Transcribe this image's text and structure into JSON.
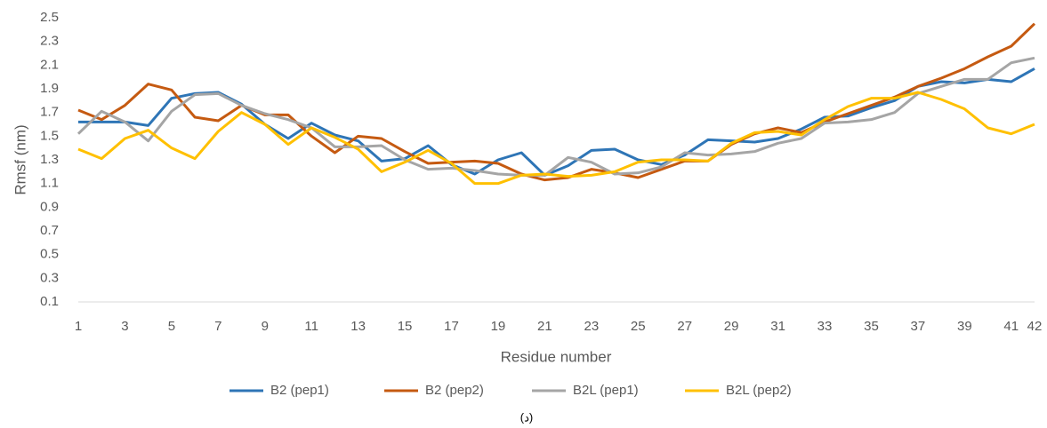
{
  "chart_data": {
    "type": "line",
    "y_label": "Rmsf (nm)",
    "x_label": "Residue number",
    "caption": "(د)",
    "x": [
      1,
      2,
      3,
      4,
      5,
      6,
      7,
      8,
      9,
      10,
      11,
      12,
      13,
      14,
      15,
      16,
      17,
      18,
      19,
      20,
      21,
      22,
      23,
      24,
      25,
      26,
      27,
      28,
      29,
      30,
      31,
      32,
      33,
      34,
      35,
      36,
      37,
      38,
      39,
      40,
      41,
      42
    ],
    "xlim": [
      1,
      42
    ],
    "xticks": [
      1,
      3,
      5,
      7,
      9,
      11,
      13,
      15,
      17,
      19,
      21,
      23,
      25,
      27,
      29,
      31,
      33,
      35,
      37,
      39,
      41,
      42
    ],
    "ylim": [
      0.1,
      2.5
    ],
    "yticks": [
      0.1,
      0.3,
      0.5,
      0.7,
      0.9,
      1.1,
      1.3,
      1.5,
      1.7,
      1.9,
      2.1,
      2.3,
      2.5
    ],
    "grid": false,
    "legend": "bottom",
    "series": [
      {
        "name": "B2 (pep1)",
        "color": "#2e75b6",
        "values": [
          1.62,
          1.62,
          1.62,
          1.59,
          1.82,
          1.86,
          1.87,
          1.77,
          1.6,
          1.48,
          1.61,
          1.51,
          1.46,
          1.29,
          1.31,
          1.42,
          1.26,
          1.18,
          1.3,
          1.36,
          1.17,
          1.25,
          1.38,
          1.39,
          1.3,
          1.26,
          1.34,
          1.47,
          1.46,
          1.45,
          1.48,
          1.56,
          1.66,
          1.67,
          1.74,
          1.8,
          1.92,
          1.96,
          1.95,
          1.98,
          1.96,
          2.07
        ]
      },
      {
        "name": "B2 (pep2)",
        "color": "#c55a11",
        "values": [
          1.72,
          1.64,
          1.76,
          1.94,
          1.89,
          1.66,
          1.63,
          1.76,
          1.68,
          1.68,
          1.5,
          1.36,
          1.5,
          1.48,
          1.37,
          1.27,
          1.28,
          1.29,
          1.27,
          1.18,
          1.13,
          1.15,
          1.22,
          1.19,
          1.15,
          1.22,
          1.29,
          1.29,
          1.43,
          1.52,
          1.57,
          1.53,
          1.62,
          1.69,
          1.76,
          1.83,
          1.92,
          1.99,
          2.07,
          2.17,
          2.26,
          2.45
        ]
      },
      {
        "name": "B2L (pep1)",
        "color": "#a5a5a5",
        "values": [
          1.52,
          1.71,
          1.62,
          1.46,
          1.71,
          1.85,
          1.86,
          1.76,
          1.69,
          1.64,
          1.57,
          1.41,
          1.41,
          1.42,
          1.3,
          1.22,
          1.23,
          1.21,
          1.18,
          1.17,
          1.17,
          1.32,
          1.28,
          1.18,
          1.19,
          1.24,
          1.36,
          1.34,
          1.35,
          1.37,
          1.44,
          1.48,
          1.61,
          1.62,
          1.64,
          1.7,
          1.86,
          1.92,
          1.98,
          1.98,
          2.12,
          2.16
        ]
      },
      {
        "name": "B2L (pep2)",
        "color": "#ffc000",
        "values": [
          1.39,
          1.31,
          1.48,
          1.55,
          1.4,
          1.31,
          1.54,
          1.7,
          1.6,
          1.43,
          1.57,
          1.49,
          1.39,
          1.2,
          1.28,
          1.38,
          1.27,
          1.1,
          1.1,
          1.17,
          1.18,
          1.16,
          1.17,
          1.2,
          1.28,
          1.3,
          1.3,
          1.29,
          1.44,
          1.53,
          1.54,
          1.51,
          1.64,
          1.75,
          1.82,
          1.82,
          1.87,
          1.81,
          1.73,
          1.57,
          1.52,
          1.6
        ]
      }
    ]
  }
}
